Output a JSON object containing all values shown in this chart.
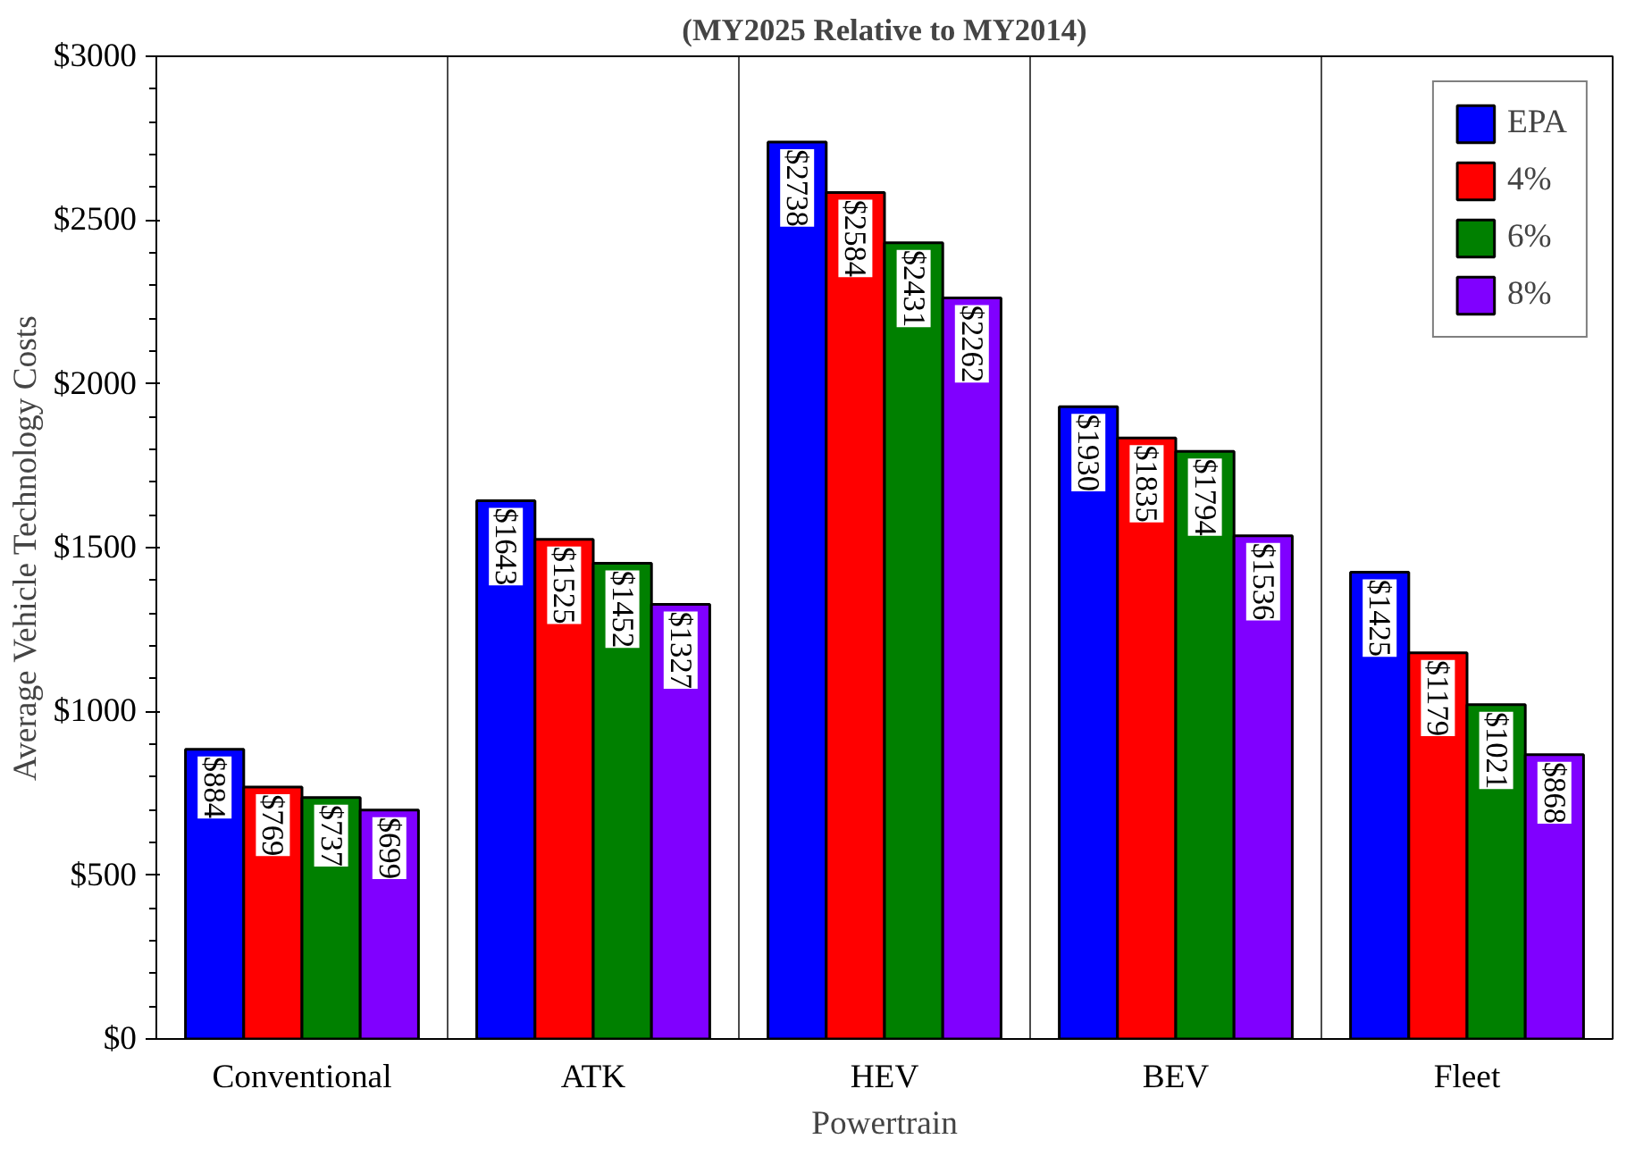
{
  "chart_data": {
    "type": "bar",
    "title": "(MY2025 Relative to MY2014)",
    "xlabel": "Powertrain",
    "ylabel": "Average Vehicle Technology Costs",
    "categories": [
      "Conventional",
      "ATK",
      "HEV",
      "BEV",
      "Fleet"
    ],
    "series": [
      {
        "name": "EPA",
        "color": "#0000ff",
        "values": [
          884,
          1643,
          2738,
          1930,
          1425
        ],
        "value_labels": [
          "$884",
          "$1643",
          "$2738",
          "$1930",
          "$1425"
        ]
      },
      {
        "name": "4%",
        "color": "#ff0000",
        "values": [
          769,
          1525,
          2584,
          1835,
          1179
        ],
        "value_labels": [
          "$769",
          "$1525",
          "$2584",
          "$1835",
          "$1179"
        ]
      },
      {
        "name": "6%",
        "color": "#008000",
        "values": [
          737,
          1452,
          2431,
          1794,
          1021
        ],
        "value_labels": [
          "$737",
          "$1452",
          "$2431",
          "$1794",
          "$1021"
        ]
      },
      {
        "name": "8%",
        "color": "#8000ff",
        "values": [
          699,
          1327,
          2262,
          1536,
          868
        ],
        "value_labels": [
          "$699",
          "$1327",
          "$2262",
          "$1536",
          "$868"
        ]
      }
    ],
    "ylim": [
      0,
      3000
    ],
    "yticks": [
      {
        "value": 0,
        "label": "$0"
      },
      {
        "value": 500,
        "label": "$500"
      },
      {
        "value": 1000,
        "label": "$1000"
      },
      {
        "value": 1500,
        "label": "$1500"
      },
      {
        "value": 2000,
        "label": "$2000"
      },
      {
        "value": 2500,
        "label": "$2500"
      },
      {
        "value": 3000,
        "label": "$3000"
      }
    ],
    "grid": "x",
    "legend": "top right"
  }
}
